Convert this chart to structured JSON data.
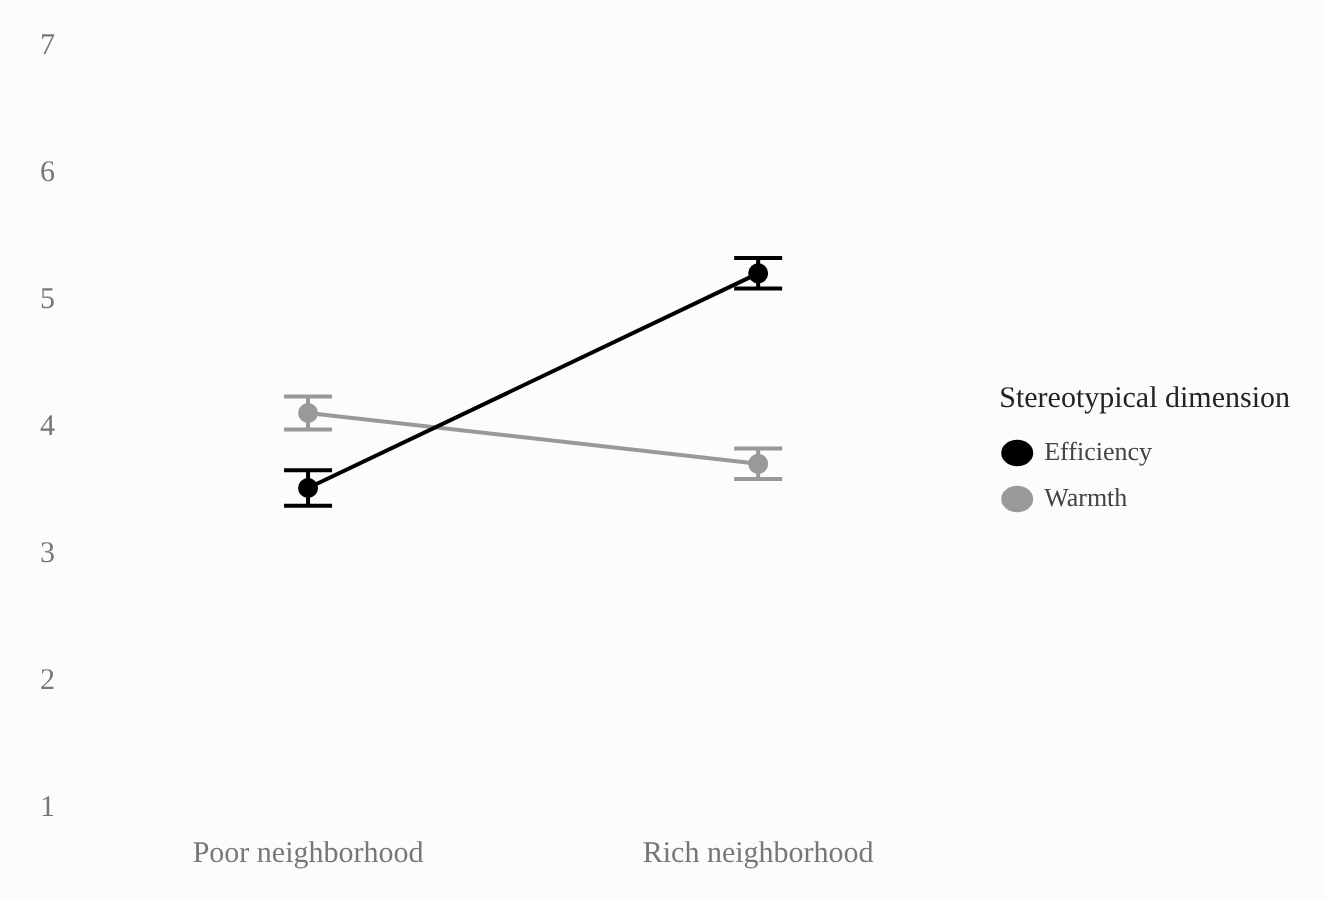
{
  "chart_data": {
    "type": "line",
    "categories": [
      "Poor neighborhood",
      "Rich neighborhood"
    ],
    "series": [
      {
        "name": "Efficiency",
        "color": "#000000",
        "values": [
          3.52,
          5.21
        ],
        "errors": [
          0.14,
          0.12
        ]
      },
      {
        "name": "Warmth",
        "color": "#999999",
        "values": [
          4.11,
          3.71
        ],
        "errors": [
          0.13,
          0.12
        ]
      }
    ],
    "legend_title": "Stereotypical dimension",
    "legend": "right",
    "marker": "circle",
    "line_style": "solid",
    "grid": false,
    "ylim": [
      1,
      7
    ],
    "yticks": [
      1,
      2,
      3,
      4,
      5,
      6,
      7
    ]
  }
}
